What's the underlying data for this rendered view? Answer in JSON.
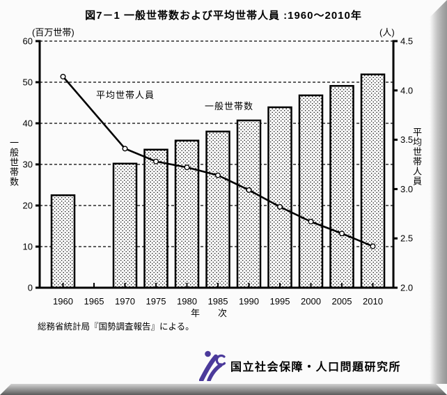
{
  "title": "図7－1 一般世帯数および平均世帯人員 :1960～2010年",
  "source_note": "総務省統計局『国勢調査報告』による。",
  "footer": {
    "institute_name": "国立社会保障・人口問題研究所",
    "logo_color": "#4b3a9b"
  },
  "chart_data": {
    "type": "bar+line combo",
    "title": "図7－1 一般世帯数および平均世帯人員 :1960～2010年",
    "xlabel": "年　　次",
    "x_ticks": [
      1960,
      1965,
      1970,
      1975,
      1980,
      1985,
      1990,
      1995,
      2000,
      2005,
      2010
    ],
    "grid": "horizontal dashed lines at left-axis ticks, top frame edge dashed",
    "left_axis": {
      "unit": "(百万世帯)",
      "title": "一般世帯数",
      "min": 0,
      "max": 60,
      "ticks": [
        0,
        10,
        20,
        30,
        40,
        50,
        60
      ]
    },
    "right_axis": {
      "unit": "(人)",
      "title": "平均世帯人員",
      "min": 2.0,
      "max": 4.5,
      "ticks": [
        "2.0",
        "2.5",
        "3.0",
        "3.5",
        "4.0",
        "4.5"
      ]
    },
    "series": [
      {
        "name": "一般世帯数",
        "kind": "bar",
        "axis": "left",
        "label": "一般世帯数",
        "x": [
          1960,
          1970,
          1975,
          1980,
          1985,
          1990,
          1995,
          2000,
          2005,
          2010
        ],
        "values": [
          22.5,
          30.2,
          33.6,
          35.8,
          38.0,
          40.7,
          43.9,
          46.8,
          49.1,
          51.9
        ],
        "style": "white bars with black dot pattern, black border"
      },
      {
        "name": "平均世帯人員",
        "kind": "line",
        "axis": "right",
        "label": "平均世帯人員",
        "x": [
          1960,
          1970,
          1975,
          1980,
          1985,
          1990,
          1995,
          2000,
          2005,
          2010
        ],
        "values": [
          4.14,
          3.41,
          3.28,
          3.22,
          3.14,
          2.99,
          2.82,
          2.67,
          2.55,
          2.42
        ],
        "style": "black line with open circle markers"
      }
    ]
  }
}
